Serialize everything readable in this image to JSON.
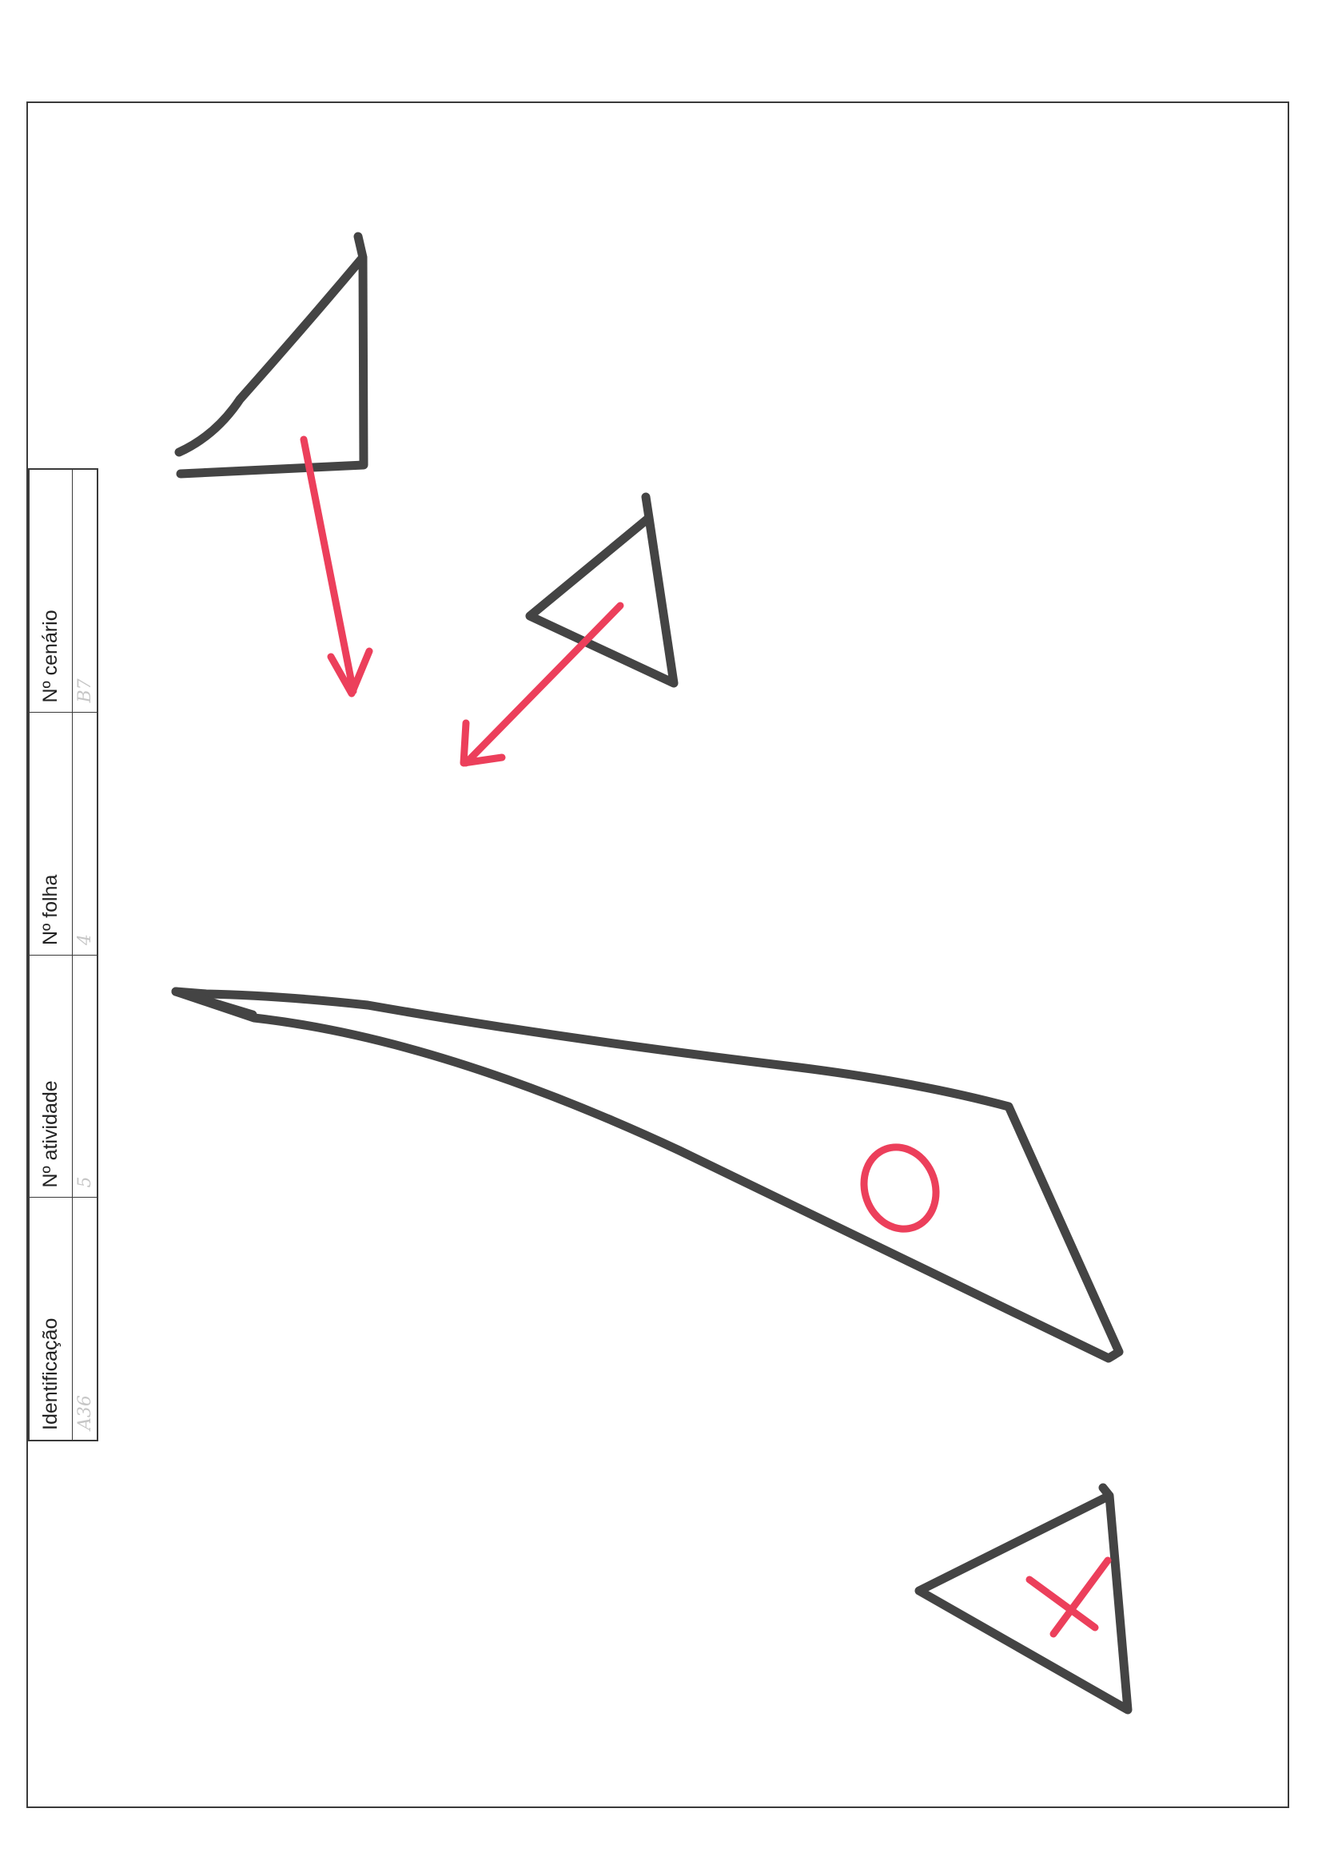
{
  "form": {
    "headers": {
      "identificacao": "Identificação",
      "atividade": "Nº atividade",
      "folha": "Nº folha",
      "cenario": "Nº cenário"
    },
    "values": {
      "identificacao": "A36",
      "atividade": "5",
      "folha": "4",
      "cenario": "B7"
    }
  },
  "drawing": {
    "ink_colors": {
      "outline": "#444444",
      "annotation": "#ec3f5b"
    },
    "marks": [
      "O",
      "X"
    ]
  }
}
